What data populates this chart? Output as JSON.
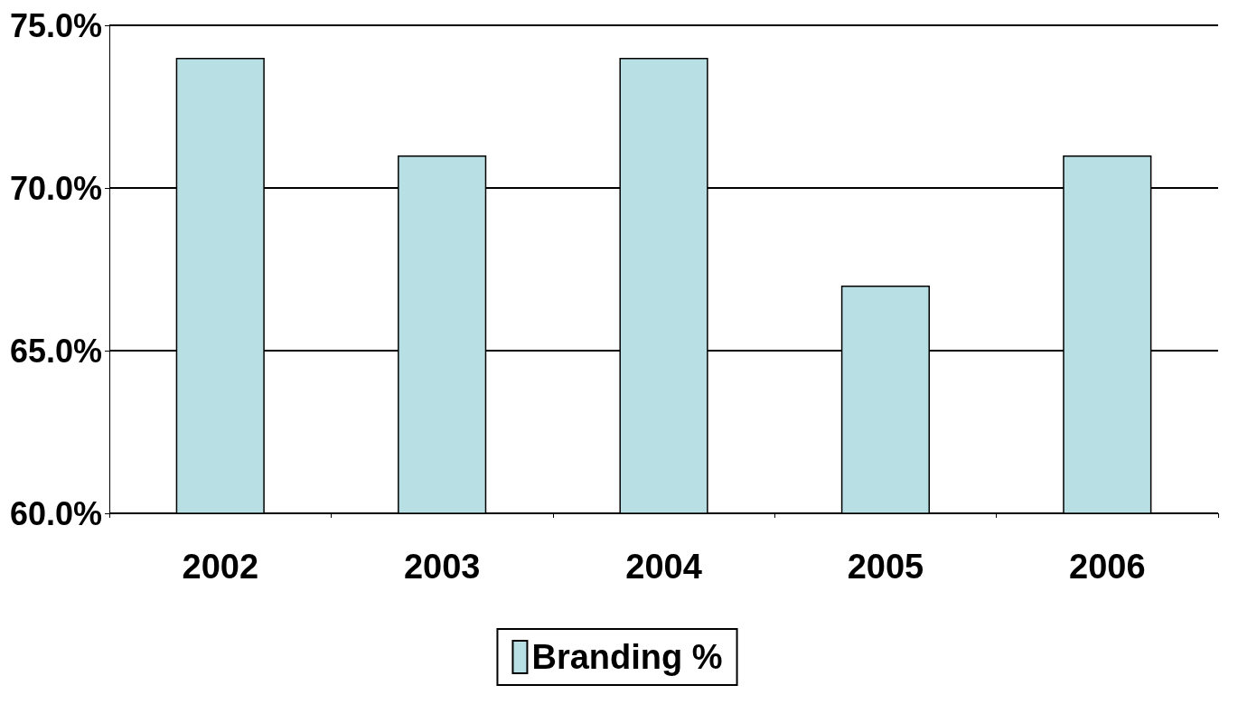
{
  "chart_data": {
    "type": "bar",
    "categories": [
      "2002",
      "2003",
      "2004",
      "2005",
      "2006"
    ],
    "series": [
      {
        "name": "Branding %",
        "color": "#b8e0e4",
        "values": [
          74,
          71,
          74,
          67,
          71
        ]
      }
    ],
    "ylim": [
      60,
      75
    ],
    "yticks": [
      {
        "value": 60,
        "label": "60.0%"
      },
      {
        "value": 65,
        "label": "65.0%"
      },
      {
        "value": 70,
        "label": "70.0%"
      },
      {
        "value": 75,
        "label": "75.0%"
      }
    ],
    "grid": "y",
    "legend": "bottom"
  }
}
